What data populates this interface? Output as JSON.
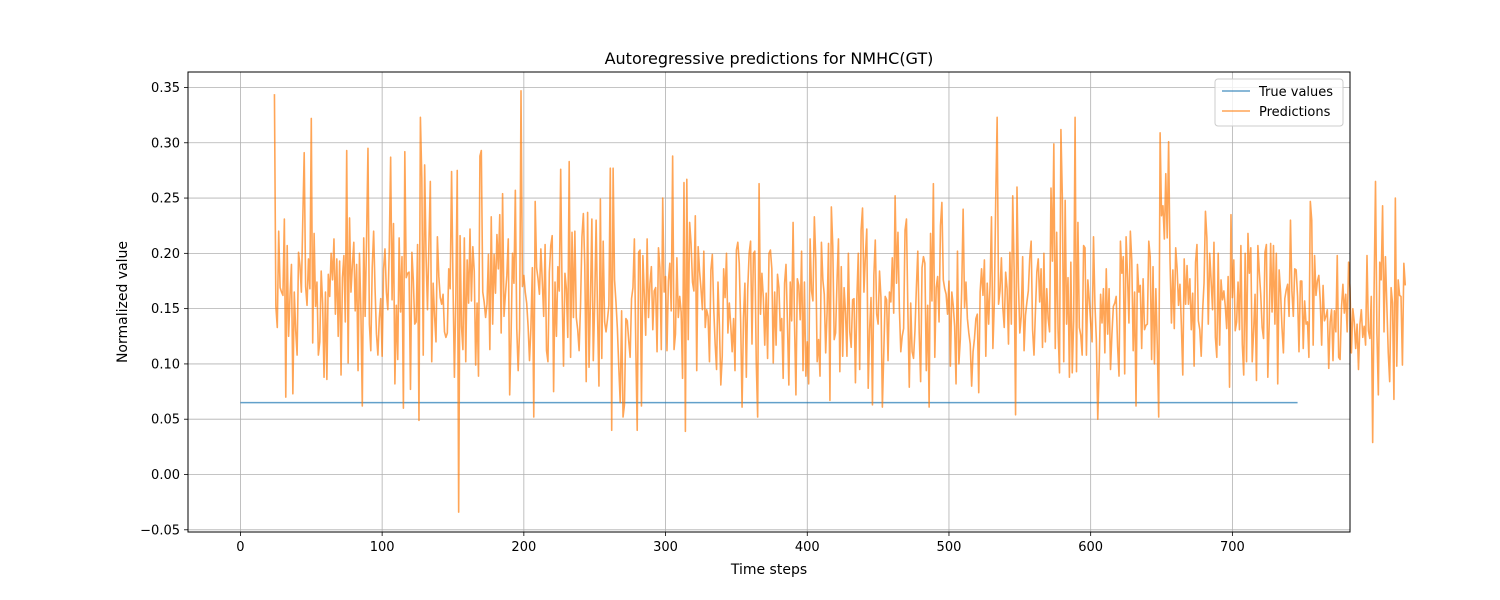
{
  "chart_data": {
    "type": "line",
    "title": "Autoregressive predictions for NMHC(GT)",
    "xlabel": "Time steps",
    "ylabel": "Normalized value",
    "xlim": [
      -37,
      783
    ],
    "ylim": [
      -0.052,
      0.364
    ],
    "x_ticks": [
      0,
      100,
      200,
      300,
      400,
      500,
      600,
      700
    ],
    "y_ticks": [
      -0.05,
      0.0,
      0.05,
      0.1,
      0.15,
      0.2,
      0.25,
      0.3,
      0.35
    ],
    "x_tick_labels": [
      "0",
      "100",
      "200",
      "300",
      "400",
      "500",
      "600",
      "700"
    ],
    "y_tick_labels": [
      "−0.05",
      "0.00",
      "0.05",
      "0.10",
      "0.15",
      "0.20",
      "0.25",
      "0.30",
      "0.35"
    ],
    "grid": true,
    "legend_position": "top-right",
    "series": [
      {
        "name": "True values",
        "color": "#1f77b4",
        "x": [
          0,
          746
        ],
        "values": [
          0.065,
          0.065
        ]
      },
      {
        "name": "Predictions",
        "color": "#ff7f0e",
        "x_start": 24,
        "values": [
          0.344,
          0.152,
          0.133,
          0.22,
          0.169,
          0.165,
          0.162,
          0.231,
          0.07,
          0.207,
          0.125,
          0.162,
          0.19,
          0.073,
          0.165,
          0.13,
          0.108,
          0.201,
          0.189,
          0.165,
          0.23,
          0.291,
          0.17,
          0.153,
          0.195,
          0.168,
          0.322,
          0.119,
          0.218,
          0.152,
          0.174,
          0.108,
          0.12,
          0.184,
          0.155,
          0.088,
          0.165,
          0.086,
          0.181,
          0.161,
          0.2,
          0.176,
          0.213,
          0.145,
          0.195,
          0.125,
          0.193,
          0.09,
          0.178,
          0.198,
          0.138,
          0.293,
          0.101,
          0.232,
          0.165,
          0.189,
          0.21,
          0.148,
          0.19,
          0.094,
          0.2,
          0.148,
          0.062,
          0.214,
          0.143,
          0.212,
          0.295,
          0.136,
          0.112,
          0.187,
          0.22,
          0.168,
          0.127,
          0.108,
          0.141,
          0.159,
          0.107,
          0.186,
          0.204,
          0.165,
          0.149,
          0.202,
          0.287,
          0.158,
          0.227,
          0.082,
          0.153,
          0.104,
          0.214,
          0.147,
          0.197,
          0.06,
          0.292,
          0.178,
          0.182,
          0.183,
          0.077,
          0.201,
          0.176,
          0.136,
          0.138,
          0.208,
          0.049,
          0.323,
          0.268,
          0.108,
          0.28,
          0.197,
          0.149,
          0.208,
          0.265,
          0.102,
          0.173,
          0.143,
          0.12,
          0.215,
          0.179,
          0.16,
          0.154,
          0.163,
          0.129,
          0.124,
          0.128,
          0.186,
          0.168,
          0.274,
          0.173,
          0.088,
          0.16,
          0.275,
          -0.034,
          0.216,
          0.134,
          0.113,
          0.214,
          0.102,
          0.194,
          0.155,
          0.222,
          0.157,
          0.206,
          0.184,
          0.099,
          0.155,
          0.089,
          0.288,
          0.293,
          0.165,
          0.156,
          0.142,
          0.154,
          0.199,
          0.113,
          0.233,
          0.136,
          0.199,
          0.164,
          0.217,
          0.186,
          0.235,
          0.128,
          0.254,
          0.143,
          0.163,
          0.18,
          0.213,
          0.072,
          0.126,
          0.2,
          0.173,
          0.257,
          0.132,
          0.094,
          0.132,
          0.347,
          0.17,
          0.18,
          0.165,
          0.155,
          0.134,
          0.103,
          0.133,
          0.187,
          0.052,
          0.247,
          0.187,
          0.177,
          0.163,
          0.204,
          0.175,
          0.143,
          0.208,
          0.112,
          0.102,
          0.183,
          0.207,
          0.216,
          0.075,
          0.174,
          0.125,
          0.188,
          0.166,
          0.276,
          0.164,
          0.098,
          0.182,
          0.168,
          0.124,
          0.283,
          0.106,
          0.219,
          0.142,
          0.22,
          0.142,
          0.131,
          0.112,
          0.153,
          0.215,
          0.236,
          0.189,
          0.084,
          0.237,
          0.097,
          0.158,
          0.231,
          0.103,
          0.156,
          0.23,
          0.145,
          0.08,
          0.249,
          0.105,
          0.211,
          0.138,
          0.129,
          0.14,
          0.153,
          0.277,
          0.04,
          0.277,
          0.176,
          0.156,
          0.132,
          0.097,
          0.065,
          0.148,
          0.052,
          0.063,
          0.141,
          0.139,
          0.121,
          0.106,
          0.159,
          0.169,
          0.213,
          0.116,
          0.04,
          0.201,
          0.203,
          0.062,
          0.198,
          0.163,
          0.126,
          0.213,
          0.142,
          0.173,
          0.188,
          0.131,
          0.166,
          0.169,
          0.111,
          0.205,
          0.187,
          0.113,
          0.25,
          0.165,
          0.179,
          0.112,
          0.175,
          0.191,
          0.148,
          0.288,
          0.113,
          0.127,
          0.196,
          0.142,
          0.161,
          0.147,
          0.087,
          0.264,
          0.039,
          0.267,
          0.122,
          0.228,
          0.209,
          0.174,
          0.166,
          0.234,
          0.094,
          0.206,
          0.184,
          0.168,
          0.149,
          0.202,
          0.133,
          0.149,
          0.143,
          0.102,
          0.185,
          0.199,
          0.15,
          0.118,
          0.095,
          0.174,
          0.135,
          0.081,
          0.107,
          0.186,
          0.16,
          0.2,
          0.128,
          0.155,
          0.135,
          0.111,
          0.141,
          0.094,
          0.203,
          0.21,
          0.191,
          0.138,
          0.061,
          0.142,
          0.173,
          0.088,
          0.168,
          0.2,
          0.211,
          0.118,
          0.2,
          0.202,
          0.102,
          0.052,
          0.263,
          0.145,
          0.182,
          0.16,
          0.117,
          0.164,
          0.105,
          0.2,
          0.203,
          0.186,
          0.101,
          0.165,
          0.117,
          0.181,
          0.169,
          0.13,
          0.141,
          0.087,
          0.173,
          0.19,
          0.138,
          0.081,
          0.174,
          0.139,
          0.228,
          0.137,
          0.072,
          0.177,
          0.171,
          0.14,
          0.202,
          0.094,
          0.174,
          0.089,
          0.12,
          0.082,
          0.213,
          0.166,
          0.157,
          0.233,
          0.195,
          0.102,
          0.122,
          0.089,
          0.21,
          0.176,
          0.163,
          0.11,
          0.147,
          0.209,
          0.067,
          0.242,
          0.207,
          0.122,
          0.128,
          0.175,
          0.213,
          0.093,
          0.188,
          0.107,
          0.169,
          0.146,
          0.107,
          0.2,
          0.129,
          0.115,
          0.158,
          0.159,
          0.083,
          0.159,
          0.2,
          0.095,
          0.221,
          0.241,
          0.165,
          0.197,
          0.222,
          0.078,
          0.131,
          0.16,
          0.063,
          0.18,
          0.212,
          0.145,
          0.136,
          0.184,
          0.16,
          0.061,
          0.11,
          0.161,
          0.158,
          0.103,
          0.165,
          0.156,
          0.196,
          0.146,
          0.252,
          0.173,
          0.219,
          0.15,
          0.111,
          0.125,
          0.132,
          0.221,
          0.231,
          0.148,
          0.079,
          0.155,
          0.111,
          0.105,
          0.13,
          0.169,
          0.202,
          0.128,
          0.084,
          0.187,
          0.197,
          0.191,
          0.094,
          0.153,
          0.061,
          0.218,
          0.157,
          0.263,
          0.106,
          0.169,
          0.179,
          0.138,
          0.225,
          0.246,
          0.176,
          0.168,
          0.163,
          0.145,
          0.175,
          0.098,
          0.165,
          0.153,
          0.134,
          0.082,
          0.202,
          0.1,
          0.122,
          0.168,
          0.24,
          0.151,
          0.174,
          0.141,
          0.128,
          0.118,
          0.08,
          0.111,
          0.123,
          0.141,
          0.145,
          0.074,
          0.165,
          0.186,
          0.162,
          0.194,
          0.107,
          0.173,
          0.136,
          0.171,
          0.233,
          0.114,
          0.155,
          0.249,
          0.323,
          0.154,
          0.166,
          0.196,
          0.151,
          0.133,
          0.183,
          0.168,
          0.118,
          0.201,
          0.136,
          0.252,
          0.184,
          0.054,
          0.26,
          0.174,
          0.128,
          0.143,
          0.197,
          0.112,
          0.144,
          0.156,
          0.166,
          0.196,
          0.211,
          0.131,
          0.108,
          0.147,
          0.183,
          0.195,
          0.156,
          0.186,
          0.115,
          0.2,
          0.12,
          0.168,
          0.141,
          0.129,
          0.259,
          0.193,
          0.299,
          0.114,
          0.219,
          0.13,
          0.092,
          0.312,
          0.251,
          0.102,
          0.248,
          0.136,
          0.178,
          0.088,
          0.192,
          0.092,
          0.139,
          0.323,
          0.093,
          0.228,
          0.133,
          0.126,
          0.108,
          0.207,
          0.205,
          0.108,
          0.176,
          0.158,
          0.137,
          0.12,
          0.215,
          0.154,
          0.122,
          0.05,
          0.097,
          0.163,
          0.137,
          0.168,
          0.11,
          0.186,
          0.127,
          0.168,
          0.095,
          0.127,
          0.152,
          0.155,
          0.161,
          0.116,
          0.089,
          0.211,
          0.182,
          0.197,
          0.091,
          0.215,
          0.18,
          0.137,
          0.22,
          0.194,
          0.112,
          0.165,
          0.062,
          0.19,
          0.165,
          0.171,
          0.114,
          0.177,
          0.131,
          0.135,
          0.136,
          0.211,
          0.197,
          0.104,
          0.188,
          0.1,
          0.168,
          0.117,
          0.052,
          0.309,
          0.234,
          0.243,
          0.213,
          0.272,
          0.214,
          0.301,
          0.193,
          0.137,
          0.185,
          0.132,
          0.205,
          0.186,
          0.153,
          0.172,
          0.135,
          0.09,
          0.195,
          0.154,
          0.189,
          0.154,
          0.177,
          0.131,
          0.164,
          0.098,
          0.192,
          0.208,
          0.139,
          0.131,
          0.107,
          0.148,
          0.173,
          0.238,
          0.214,
          0.136,
          0.2,
          0.175,
          0.149,
          0.21,
          0.124,
          0.106,
          0.2,
          0.117,
          0.176,
          0.158,
          0.166,
          0.152,
          0.132,
          0.179,
          0.079,
          0.235,
          0.16,
          0.194,
          0.13,
          0.138,
          0.174,
          0.131,
          0.207,
          0.118,
          0.09,
          0.2,
          0.102,
          0.218,
          0.182,
          0.205,
          0.102,
          0.13,
          0.163,
          0.085,
          0.207,
          0.183,
          0.163,
          0.133,
          0.123,
          0.201,
          0.208,
          0.088,
          0.138,
          0.209,
          0.147,
          0.207,
          0.136,
          0.2,
          0.082,
          0.185,
          0.165,
          0.133,
          0.11,
          0.159,
          0.167,
          0.172,
          0.143,
          0.23,
          0.166,
          0.143,
          0.186,
          0.185,
          0.161,
          0.111,
          0.175,
          0.175,
          0.114,
          0.157,
          0.136,
          0.138,
          0.106,
          0.247,
          0.23,
          0.117,
          0.198,
          0.162,
          0.175,
          0.18,
          0.157,
          0.117,
          0.171,
          0.139,
          0.143,
          0.149,
          0.096,
          0.138,
          0.149,
          0.103,
          0.148,
          0.129,
          0.198,
          0.106,
          0.104,
          0.151,
          0.172,
          0.146,
          0.163,
          0.129,
          0.192,
          0.168,
          0.11,
          0.15,
          0.138,
          0.114,
          0.136,
          0.095,
          0.136,
          0.149,
          0.124,
          0.134,
          0.117,
          0.198,
          0.13,
          0.123,
          0.161,
          0.029,
          0.166,
          0.265,
          0.128,
          0.072,
          0.192,
          0.176,
          0.243,
          0.129,
          0.197,
          0.153,
          0.11,
          0.084,
          0.169,
          0.155,
          0.068,
          0.25,
          0.098,
          0.176,
          0.162,
          0.161,
          0.099,
          0.191,
          0.171
        ]
      }
    ]
  }
}
